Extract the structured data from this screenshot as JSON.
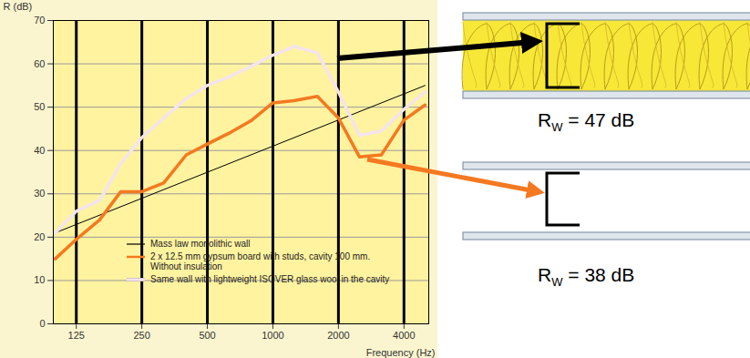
{
  "chart_data": {
    "type": "line",
    "x_label": "Frequency (Hz)",
    "y_label": "R (dB)",
    "log": "x",
    "grid": true,
    "legend": "bottom",
    "xlim": [
      98,
      5200
    ],
    "xticks": [
      125,
      250,
      500,
      1000,
      2000,
      4000
    ],
    "ylim": [
      0,
      70
    ],
    "yticks": [
      0,
      10,
      20,
      30,
      40,
      50,
      60,
      70
    ],
    "x": [
      100,
      125,
      160,
      200,
      250,
      315,
      400,
      500,
      630,
      800,
      1000,
      1250,
      1600,
      2000,
      2500,
      3150,
      4000,
      5000
    ],
    "series": [
      {
        "name": "Mass law monolithic wall",
        "color": "#000000",
        "x": [
          100,
          5000
        ],
        "values": [
          21,
          55
        ]
      },
      {
        "name": "2 x 12.5 mm gypsum board with studs, cavity 100 mm. Without insulation",
        "color": "#f47920",
        "values": [
          15,
          19.5,
          24,
          30.5,
          30.5,
          32.5,
          39,
          41.5,
          44,
          47,
          51,
          51.5,
          52.5,
          47.5,
          38.5,
          39,
          47,
          50.5
        ]
      },
      {
        "name": "Same wall with lightweight ISOVER glass wool in the cavity",
        "color": "#f4e4ee",
        "values": [
          21,
          26,
          28.5,
          37,
          43,
          47.5,
          52,
          55,
          57,
          59.5,
          62,
          64,
          62.5,
          53.5,
          43.5,
          44.5,
          49.5,
          53.5
        ]
      }
    ],
    "annotations": [
      {
        "text": "R",
        "subscript": "W",
        "suffix": " = 47 dB"
      },
      {
        "text": "R",
        "subscript": "W",
        "suffix": " = 38 dB"
      }
    ]
  }
}
